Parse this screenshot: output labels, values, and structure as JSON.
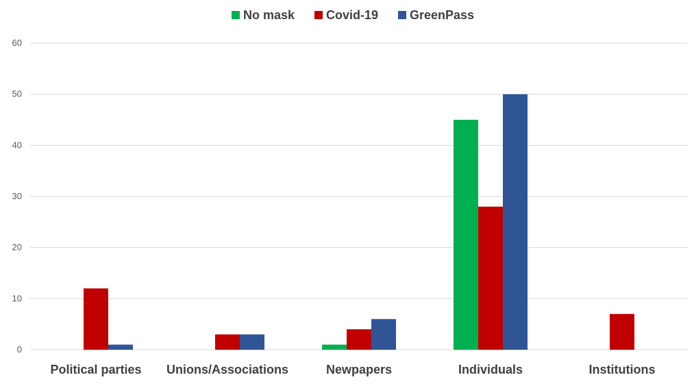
{
  "chart_data": {
    "type": "bar",
    "categories": [
      "Political parties",
      "Unions/Associations",
      "Newpapers",
      "Individuals",
      "Institutions"
    ],
    "series": [
      {
        "name": "No mask",
        "color": "#00b050",
        "values": [
          0,
          0,
          1,
          45,
          0
        ]
      },
      {
        "name": "Covid-19",
        "color": "#c00000",
        "values": [
          12,
          3,
          4,
          28,
          7
        ]
      },
      {
        "name": "GreenPass",
        "color": "#2f5597",
        "values": [
          1,
          3,
          6,
          50,
          0
        ]
      }
    ],
    "ylim": [
      0,
      60
    ],
    "yticks": [
      0,
      10,
      20,
      30,
      40,
      50,
      60
    ],
    "grid": true,
    "legend": "top-center",
    "gridColor": "#d9d9d9"
  }
}
